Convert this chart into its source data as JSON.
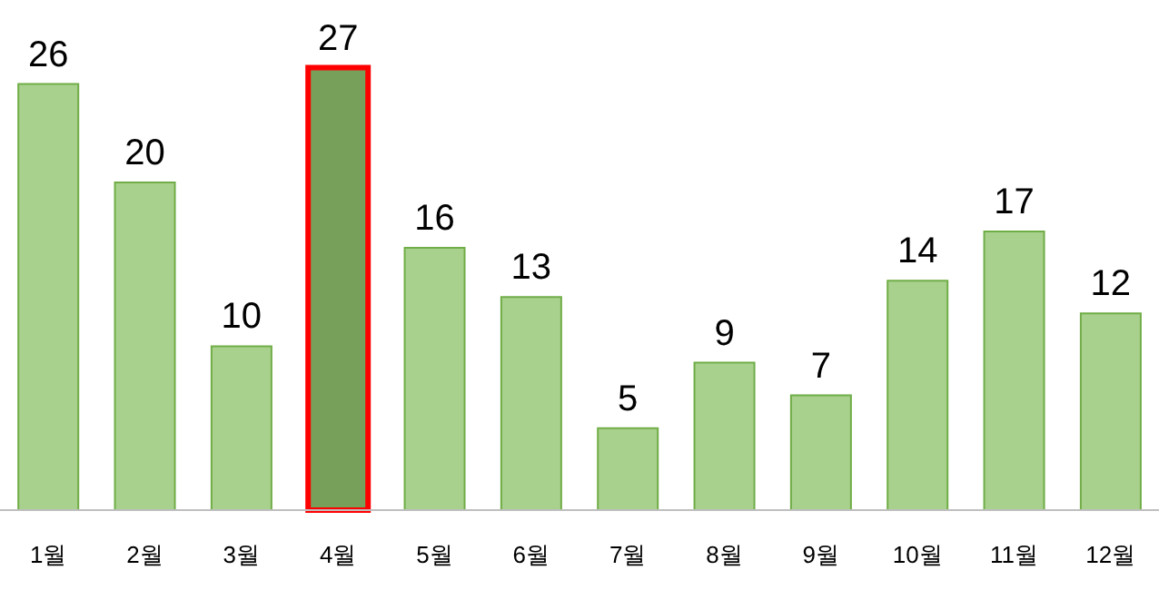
{
  "chart_data": {
    "type": "bar",
    "categories": [
      "1월",
      "2월",
      "3월",
      "4월",
      "5월",
      "6월",
      "7월",
      "8월",
      "9월",
      "10월",
      "11월",
      "12월"
    ],
    "values": [
      26,
      20,
      10,
      27,
      16,
      13,
      5,
      9,
      7,
      14,
      17,
      12
    ],
    "colors": [
      "#a9d18e",
      "#a9d18e",
      "#a9d18e",
      "#77a05a",
      "#a9d18e",
      "#a9d18e",
      "#a9d18e",
      "#a9d18e",
      "#a9d18e",
      "#a9d18e",
      "#a9d18e",
      "#a9d18e"
    ],
    "data_labels": true,
    "grid": false,
    "legend": false
  }
}
